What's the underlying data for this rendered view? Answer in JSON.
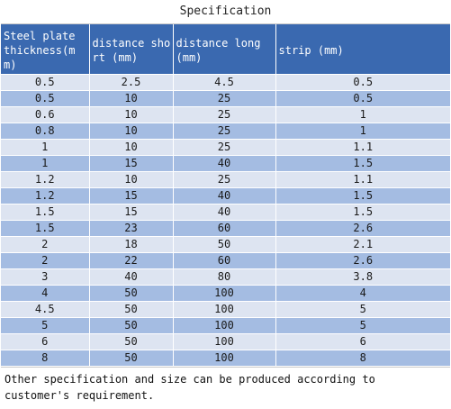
{
  "title": "Specification",
  "headers": [
    "Steel plate thickness(mm)",
    "distance short (mm)",
    "distance long (mm)",
    "strip (mm)"
  ],
  "rows": [
    [
      "0.5",
      "2.5",
      "4.5",
      "0.5"
    ],
    [
      "0.5",
      "10",
      "25",
      "0.5"
    ],
    [
      "0.6",
      "10",
      "25",
      "1"
    ],
    [
      "0.8",
      "10",
      "25",
      "1"
    ],
    [
      "1",
      "10",
      "25",
      "1.1"
    ],
    [
      "1",
      "15",
      "40",
      "1.5"
    ],
    [
      "1.2",
      "10",
      "25",
      "1.1"
    ],
    [
      "1.2",
      "15",
      "40",
      "1.5"
    ],
    [
      "1.5",
      "15",
      "40",
      "1.5"
    ],
    [
      "1.5",
      "23",
      "60",
      "2.6"
    ],
    [
      "2",
      "18",
      "50",
      "2.1"
    ],
    [
      "2",
      "22",
      "60",
      "2.6"
    ],
    [
      "3",
      "40",
      "80",
      "3.8"
    ],
    [
      "4",
      "50",
      "100",
      "4"
    ],
    [
      "4.5",
      "50",
      "100",
      "5"
    ],
    [
      "5",
      "50",
      "100",
      "5"
    ],
    [
      "6",
      "50",
      "100",
      "6"
    ],
    [
      "8",
      "50",
      "100",
      "8"
    ]
  ],
  "footer": "Other specification and size can be produced according to customer's requirement.",
  "colors": {
    "header_bg": "#3a69b0",
    "header_text": "#ffffff",
    "row_light": "#dde4f1",
    "row_dark": "#a4bce2"
  }
}
